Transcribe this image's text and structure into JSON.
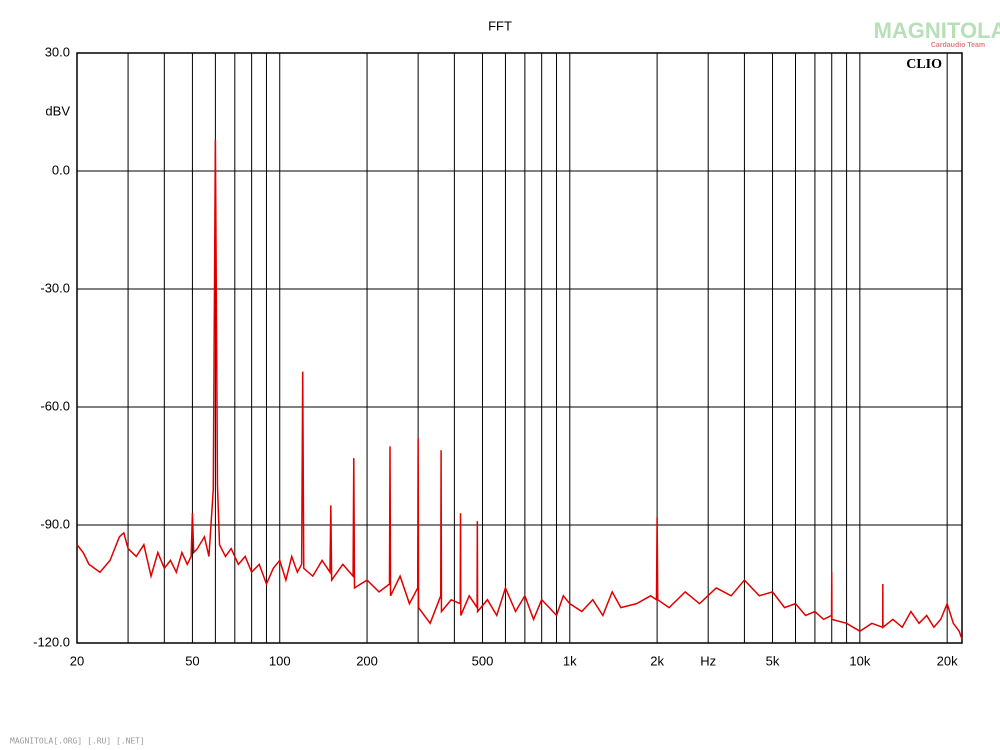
{
  "chart_data": {
    "type": "line",
    "title": "FFT",
    "y_unit": "dBV",
    "brand": "CLIO",
    "watermark": "MAGNITOLA",
    "watermark_sub": "Cardaudio Team",
    "footer": "MAGNITOLA[.ORG] [.RU] [.NET]",
    "log_x": true,
    "grid": true,
    "xlim": [
      20,
      22500
    ],
    "ylim": [
      -120,
      30
    ],
    "xticks": [
      20,
      50,
      100,
      200,
      500,
      {
        "value": 1000,
        "label": "1k"
      },
      {
        "value": 2000,
        "label": "2k"
      },
      {
        "value": 3000,
        "label": "Hz"
      },
      {
        "value": 5000,
        "label": "5k"
      },
      {
        "value": 10000,
        "label": "10k"
      },
      {
        "value": 20000,
        "label": "20k"
      }
    ],
    "xgrid": [
      30,
      40,
      60,
      70,
      80,
      90,
      300,
      400,
      600,
      700,
      800,
      900,
      4000,
      6000,
      7000,
      8000,
      9000
    ],
    "yticks": [
      {
        "value": 30,
        "label": "30.0"
      },
      {
        "value": 0,
        "label": "0.0"
      },
      {
        "value": -30,
        "label": "-30.0"
      },
      {
        "value": -60,
        "label": "-60.0"
      },
      {
        "value": -90,
        "label": "-90.0"
      },
      {
        "value": -120,
        "label": "-120.0"
      }
    ],
    "series": [
      {
        "name": "FFT",
        "color": "#e00000",
        "x": [
          20,
          21,
          22,
          24,
          26,
          28,
          29,
          30,
          32,
          34,
          36,
          38,
          40,
          42,
          44,
          46,
          48,
          49.5,
          50,
          50.5,
          52,
          55,
          57,
          59,
          60,
          61,
          62,
          65,
          68,
          72,
          76,
          80,
          85,
          90,
          95,
          100,
          105,
          110,
          115,
          119,
          120,
          121,
          130,
          140,
          149,
          150,
          151,
          165,
          179,
          180,
          181,
          200,
          220,
          239,
          240,
          241,
          260,
          280,
          299,
          300,
          301,
          330,
          359,
          360,
          361,
          390,
          419,
          420,
          421,
          450,
          479,
          480,
          481,
          520,
          560,
          600,
          650,
          700,
          750,
          800,
          850,
          900,
          950,
          1000,
          1100,
          1200,
          1300,
          1400,
          1500,
          1700,
          1900,
          1990,
          2000,
          2010,
          2200,
          2500,
          2800,
          3200,
          3600,
          4000,
          4500,
          5000,
          5500,
          6000,
          6500,
          7000,
          7500,
          7990,
          8000,
          8010,
          9000,
          10000,
          11000,
          11990,
          12000,
          12010,
          13000,
          14000,
          15000,
          16000,
          17000,
          18000,
          19000,
          20000,
          21000,
          22000,
          22500
        ],
        "values": [
          -95,
          -97,
          -100,
          -102,
          -99,
          -93,
          -92,
          -96,
          -98,
          -95,
          -103,
          -97,
          -101,
          -99,
          -102,
          -97,
          -100,
          -98,
          -87,
          -97,
          -96,
          -93,
          -98,
          -81,
          8,
          -80,
          -95,
          -98,
          -96,
          -100,
          -98,
          -102,
          -100,
          -105,
          -101,
          -99,
          -104,
          -98,
          -102,
          -100,
          -51,
          -101,
          -103,
          -99,
          -102,
          -85,
          -104,
          -100,
          -103,
          -73,
          -106,
          -104,
          -107,
          -105,
          -70,
          -108,
          -103,
          -110,
          -106,
          -68,
          -111,
          -115,
          -108,
          -71,
          -112,
          -109,
          -110,
          -87,
          -113,
          -108,
          -111,
          -89,
          -112,
          -109,
          -113,
          -106,
          -112,
          -108,
          -114,
          -109,
          -111,
          -113,
          -108,
          -110,
          -112,
          -109,
          -113,
          -107,
          -111,
          -110,
          -108,
          -109,
          -88,
          -109,
          -111,
          -107,
          -110,
          -106,
          -108,
          -104,
          -108,
          -107,
          -111,
          -110,
          -113,
          -112,
          -114,
          -113,
          -102,
          -114,
          -115,
          -117,
          -115,
          -116,
          -105,
          -116,
          -114,
          -116,
          -112,
          -115,
          -113,
          -116,
          -114,
          -110,
          -115,
          -117,
          -119
        ]
      }
    ]
  }
}
